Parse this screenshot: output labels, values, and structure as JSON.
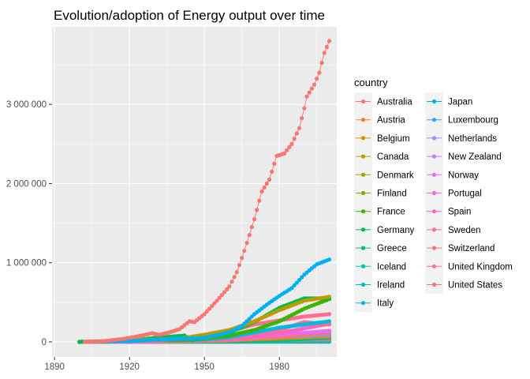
{
  "chart_data": {
    "type": "line",
    "title": "Evolution/adoption of Energy output over time",
    "xlabel": "",
    "ylabel": "",
    "xlim": [
      1889,
      2003
    ],
    "ylim": [
      -190000,
      3980000
    ],
    "x_ticks": [
      1890,
      1920,
      1950,
      1980
    ],
    "y_ticks": [
      {
        "value": 0,
        "label": "0"
      },
      {
        "value": 1000000,
        "label": "1 000 000"
      },
      {
        "value": 2000000,
        "label": "2 000 000"
      },
      {
        "value": 3000000,
        "label": "3 000 000"
      }
    ],
    "grid": true,
    "legend": {
      "title": "country",
      "position": "right",
      "columns": 2
    },
    "series": [
      {
        "name": "Australia",
        "color": "#F8766D",
        "points": [
          [
            1900,
            0
          ],
          [
            1920,
            2000
          ],
          [
            1940,
            5000
          ],
          [
            1960,
            20000
          ],
          [
            1980,
            60000
          ],
          [
            2000,
            120000
          ]
        ]
      },
      {
        "name": "Austria",
        "color": "#EA8331",
        "points": [
          [
            1920,
            0
          ],
          [
            1950,
            8000
          ],
          [
            1980,
            20000
          ],
          [
            2000,
            30000
          ]
        ]
      },
      {
        "name": "Belgium",
        "color": "#D89000",
        "points": [
          [
            1900,
            0
          ],
          [
            1930,
            5000
          ],
          [
            1960,
            20000
          ],
          [
            1980,
            50000
          ],
          [
            2000,
            80000
          ]
        ]
      },
      {
        "name": "Canada",
        "color": "#C09B00",
        "points": [
          [
            1912,
            10000
          ],
          [
            1920,
            20000
          ],
          [
            1930,
            30000
          ],
          [
            1940,
            40000
          ],
          [
            1950,
            90000
          ],
          [
            1960,
            150000
          ],
          [
            1970,
            260000
          ],
          [
            1980,
            400000
          ],
          [
            1990,
            520000
          ],
          [
            2000,
            570000
          ]
        ]
      },
      {
        "name": "Denmark",
        "color": "#A3A500",
        "points": [
          [
            1900,
            0
          ],
          [
            1950,
            5000
          ],
          [
            1980,
            25000
          ],
          [
            2000,
            40000
          ]
        ]
      },
      {
        "name": "Finland",
        "color": "#7CAE00",
        "points": [
          [
            1920,
            0
          ],
          [
            1950,
            10000
          ],
          [
            1980,
            40000
          ],
          [
            2000,
            70000
          ]
        ]
      },
      {
        "name": "France",
        "color": "#39B600",
        "points": [
          [
            1900,
            0
          ],
          [
            1920,
            20000
          ],
          [
            1930,
            30000
          ],
          [
            1940,
            20000
          ],
          [
            1950,
            40000
          ],
          [
            1960,
            80000
          ],
          [
            1970,
            150000
          ],
          [
            1980,
            260000
          ],
          [
            1990,
            420000
          ],
          [
            2000,
            540000
          ]
        ]
      },
      {
        "name": "Germany",
        "color": "#00BB4E",
        "points": [
          [
            1900,
            0
          ],
          [
            1920,
            15000
          ],
          [
            1930,
            50000
          ],
          [
            1942,
            80000
          ],
          [
            1945,
            20000
          ],
          [
            1950,
            60000
          ],
          [
            1960,
            120000
          ],
          [
            1970,
            250000
          ],
          [
            1980,
            430000
          ],
          [
            1990,
            550000
          ],
          [
            2000,
            550000
          ]
        ]
      },
      {
        "name": "Greece",
        "color": "#00BF7D",
        "points": [
          [
            1920,
            0
          ],
          [
            1950,
            2000
          ],
          [
            1980,
            20000
          ],
          [
            2000,
            50000
          ]
        ]
      },
      {
        "name": "Iceland",
        "color": "#00C1A3",
        "points": [
          [
            1920,
            0
          ],
          [
            1960,
            1000
          ],
          [
            2000,
            8000
          ]
        ]
      },
      {
        "name": "Ireland",
        "color": "#00BFC4",
        "points": [
          [
            1930,
            0
          ],
          [
            1960,
            5000
          ],
          [
            1980,
            10000
          ],
          [
            2000,
            25000
          ]
        ]
      },
      {
        "name": "Italy",
        "color": "#00BAE0",
        "points": [
          [
            1900,
            0
          ],
          [
            1920,
            10000
          ],
          [
            1940,
            20000
          ],
          [
            1950,
            30000
          ],
          [
            1960,
            60000
          ],
          [
            1970,
            120000
          ],
          [
            1980,
            180000
          ],
          [
            1990,
            220000
          ],
          [
            2000,
            260000
          ]
        ]
      },
      {
        "name": "Japan",
        "color": "#00B0F6",
        "points": [
          [
            1905,
            0
          ],
          [
            1920,
            10000
          ],
          [
            1930,
            25000
          ],
          [
            1940,
            40000
          ],
          [
            1950,
            50000
          ],
          [
            1960,
            120000
          ],
          [
            1965,
            200000
          ],
          [
            1970,
            350000
          ],
          [
            1975,
            470000
          ],
          [
            1980,
            580000
          ],
          [
            1985,
            680000
          ],
          [
            1990,
            850000
          ],
          [
            1995,
            980000
          ],
          [
            2000,
            1040000
          ]
        ]
      },
      {
        "name": "Luxembourg",
        "color": "#35A2FF",
        "points": [
          [
            1920,
            0
          ],
          [
            1960,
            1000
          ],
          [
            2000,
            1000
          ]
        ]
      },
      {
        "name": "Netherlands",
        "color": "#9590FF",
        "points": [
          [
            1920,
            0
          ],
          [
            1960,
            20000
          ],
          [
            1980,
            60000
          ],
          [
            2000,
            95000
          ]
        ]
      },
      {
        "name": "New Zealand",
        "color": "#C77CFF",
        "points": [
          [
            1920,
            0
          ],
          [
            1960,
            10000
          ],
          [
            1980,
            25000
          ],
          [
            2000,
            40000
          ]
        ]
      },
      {
        "name": "Norway",
        "color": "#E76BF3",
        "points": [
          [
            1900,
            0
          ],
          [
            1930,
            5000
          ],
          [
            1960,
            40000
          ],
          [
            1980,
            90000
          ],
          [
            2000,
            140000
          ]
        ]
      },
      {
        "name": "Portugal",
        "color": "#FA62DB",
        "points": [
          [
            1930,
            0
          ],
          [
            1960,
            10000
          ],
          [
            1980,
            20000
          ],
          [
            2000,
            45000
          ]
        ]
      },
      {
        "name": "Spain",
        "color": "#FF62BC",
        "points": [
          [
            1910,
            0
          ],
          [
            1950,
            20000
          ],
          [
            1970,
            70000
          ],
          [
            1980,
            110000
          ],
          [
            2000,
            230000
          ]
        ]
      },
      {
        "name": "Sweden",
        "color": "#FF6C91",
        "points": [
          [
            1900,
            0
          ],
          [
            1930,
            10000
          ],
          [
            1950,
            30000
          ],
          [
            1960,
            60000
          ],
          [
            1970,
            110000
          ],
          [
            1980,
            150000
          ],
          [
            1990,
            250000
          ],
          [
            2000,
            220000
          ]
        ]
      },
      {
        "name": "Switzerland",
        "color": "#F8766D",
        "points": [
          [
            1910,
            0
          ],
          [
            1940,
            10000
          ],
          [
            1960,
            25000
          ],
          [
            1980,
            50000
          ],
          [
            2000,
            70000
          ]
        ]
      },
      {
        "name": "United Kingdom",
        "color": "#FF6C91",
        "points": [
          [
            1920,
            5000
          ],
          [
            1930,
            10000
          ],
          [
            1940,
            30000
          ],
          [
            1950,
            60000
          ],
          [
            1960,
            130000
          ],
          [
            1970,
            220000
          ],
          [
            1980,
            270000
          ],
          [
            1990,
            320000
          ],
          [
            2000,
            350000
          ]
        ]
      },
      {
        "name": "United States",
        "color": "#F8766D",
        "points": [
          [
            1902,
            0
          ],
          [
            1910,
            10000
          ],
          [
            1918,
            40000
          ],
          [
            1925,
            80000
          ],
          [
            1929,
            110000
          ],
          [
            1932,
            90000
          ],
          [
            1936,
            120000
          ],
          [
            1940,
            160000
          ],
          [
            1944,
            260000
          ],
          [
            1946,
            250000
          ],
          [
            1950,
            350000
          ],
          [
            1955,
            520000
          ],
          [
            1960,
            700000
          ],
          [
            1963,
            880000
          ],
          [
            1966,
            1150000
          ],
          [
            1970,
            1550000
          ],
          [
            1973,
            1900000
          ],
          [
            1976,
            2050000
          ],
          [
            1979,
            2350000
          ],
          [
            1982,
            2380000
          ],
          [
            1985,
            2500000
          ],
          [
            1988,
            2700000
          ],
          [
            1990,
            2950000
          ],
          [
            1991,
            3100000
          ],
          [
            1994,
            3250000
          ],
          [
            1996,
            3400000
          ],
          [
            1998,
            3650000
          ],
          [
            2000,
            3800000
          ]
        ]
      }
    ]
  }
}
